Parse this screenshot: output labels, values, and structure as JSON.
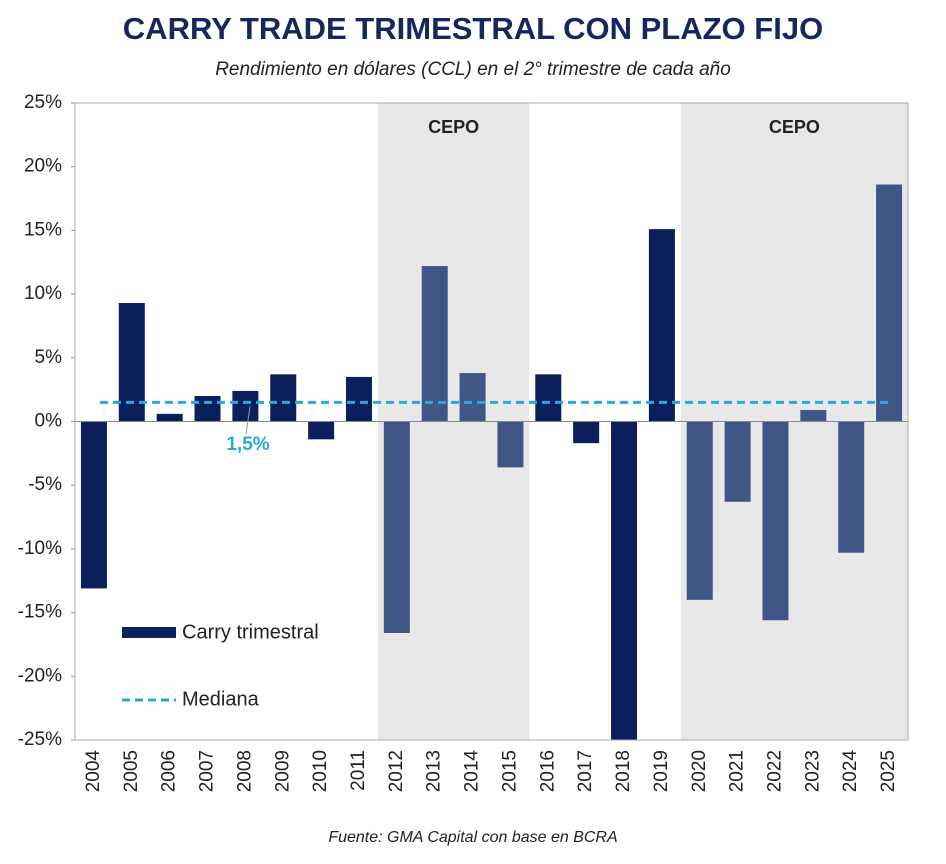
{
  "chart_data": {
    "type": "bar",
    "title": "CARRY TRADE TRIMESTRAL CON PLAZO FIJO",
    "subtitle": "Rendimiento en dólares (CCL) en el 2° trimestre de cada año",
    "source": "Fuente: GMA Capital con base en BCRA",
    "categories": [
      "2004",
      "2005",
      "2006",
      "2007",
      "2008",
      "2009",
      "2010",
      "2011",
      "2012",
      "2013",
      "2014",
      "2015",
      "2016",
      "2017",
      "2018",
      "2019",
      "2020",
      "2021",
      "2022",
      "2023",
      "2024",
      "2025"
    ],
    "series": [
      {
        "name": "Carry trimestral",
        "color": "#0b1f5c",
        "values": [
          -13.1,
          9.3,
          0.6,
          2.0,
          2.4,
          3.7,
          -1.4,
          3.5,
          -16.6,
          12.2,
          3.8,
          -3.6,
          3.7,
          -1.7,
          -25,
          15.1,
          -14.0,
          -6.3,
          -15.6,
          0.9,
          -10.3,
          18.6
        ],
        "colors": [
          "#0b1f5c",
          "#0b1f5c",
          "#0b1f5c",
          "#0b1f5c",
          "#0b1f5c",
          "#0b1f5c",
          "#0b1f5c",
          "#0b1f5c",
          "#3f5686",
          "#3f5686",
          "#3f5686",
          "#3f5686",
          "#0b1f5c",
          "#0b1f5c",
          "#0b1f5c",
          "#0b1f5c",
          "#3f5686",
          "#3f5686",
          "#3f5686",
          "#3f5686",
          "#3f5686",
          "#3f5686"
        ]
      }
    ],
    "reference_line": {
      "name": "Mediana",
      "value": 1.5,
      "label": "1,5%",
      "color": "#29a8e0"
    },
    "shaded_regions": [
      {
        "label": "CEPO",
        "from": "2012",
        "to": "2015",
        "color": "#e8e8e8"
      },
      {
        "label": "CEPO",
        "from": "2020",
        "to": "2025",
        "color": "#e8e8e8"
      }
    ],
    "ylim": [
      -25,
      25
    ],
    "yticks": [
      {
        "value": -25,
        "label": "-25%"
      },
      {
        "value": -20,
        "label": "-20%"
      },
      {
        "value": -15,
        "label": "-15%"
      },
      {
        "value": -10,
        "label": "-10%"
      },
      {
        "value": -5,
        "label": "-5%"
      },
      {
        "value": 0,
        "label": "0%"
      },
      {
        "value": 5,
        "label": "5%"
      },
      {
        "value": 10,
        "label": "10%"
      },
      {
        "value": 15,
        "label": "15%"
      },
      {
        "value": 20,
        "label": "20%"
      },
      {
        "value": 25,
        "label": "25%"
      }
    ]
  }
}
